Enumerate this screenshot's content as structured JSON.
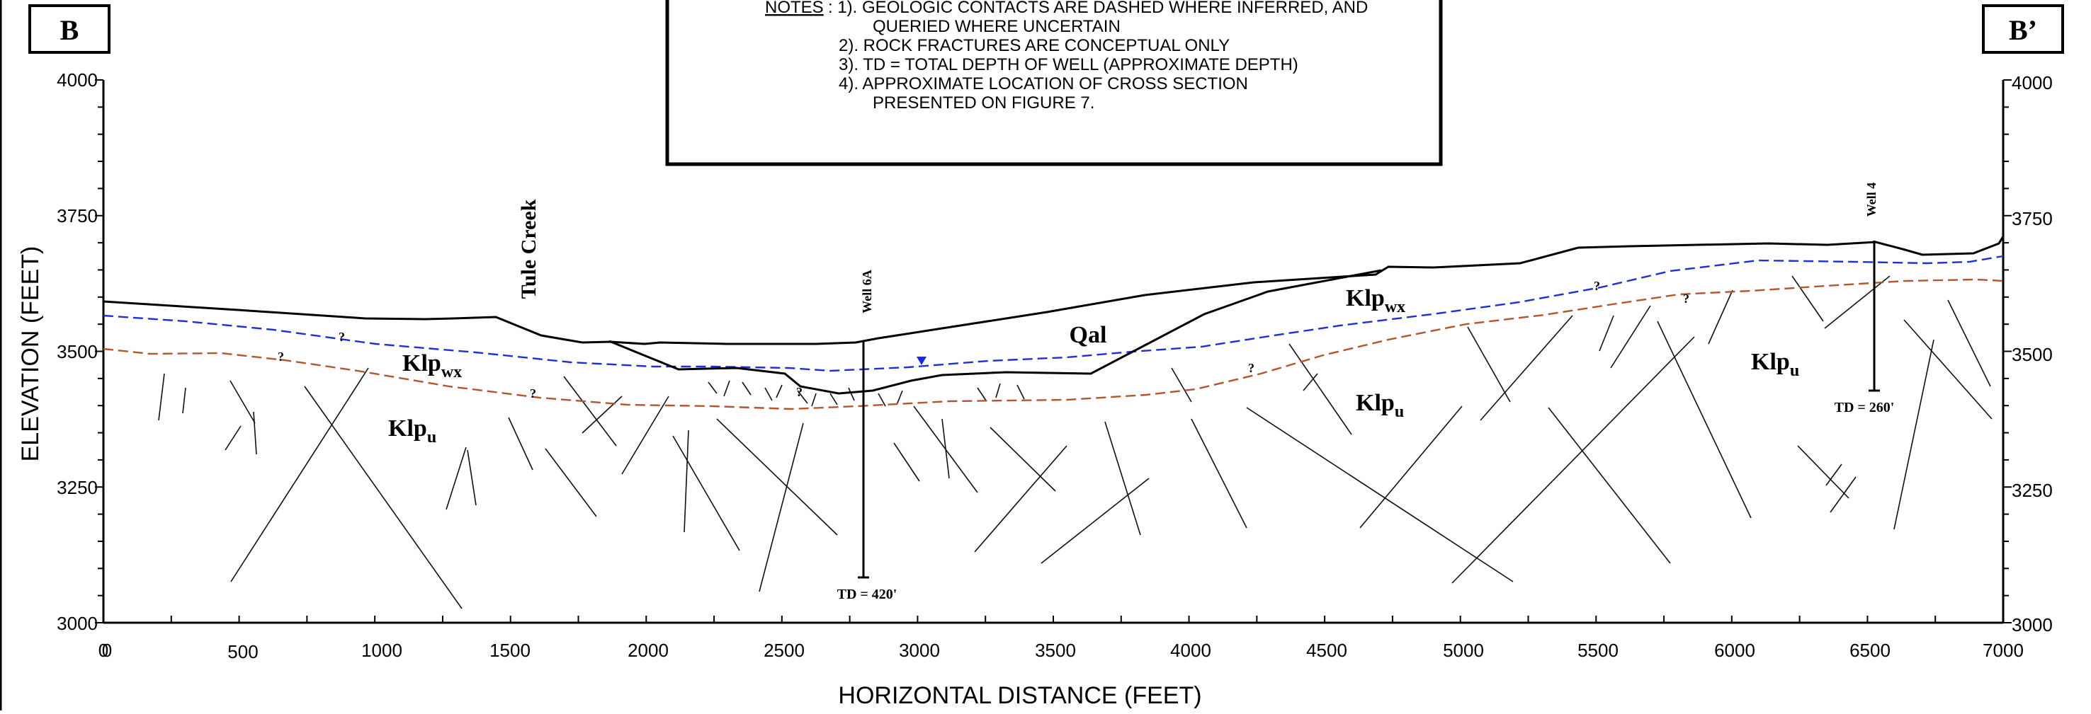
{
  "section_labels": {
    "left": "B",
    "right": "B’"
  },
  "notes": {
    "heading": "NOTES",
    "lines": [
      ": 1). GEOLOGIC CONTACTS ARE DASHED WHERE INFERRED, AND",
      "QUERIED WHERE UNCERTAIN",
      "2). ROCK FRACTURES ARE CONCEPTUAL ONLY",
      "3). TD = TOTAL DEPTH OF WELL (APPROXIMATE DEPTH)",
      "4). APPROXIMATE LOCATION OF CROSS SECTION",
      "PRESENTED ON FIGURE 7."
    ]
  },
  "axes": {
    "y_label": "ELEVATION (FEET)",
    "x_label": "HORIZONTAL DISTANCE (FEET)",
    "x_ticks": [
      "0",
      "500",
      "1000",
      "1500",
      "2000",
      "2500",
      "3000",
      "3500",
      "4000",
      "4500",
      "5000",
      "5500",
      "6000",
      "6500",
      "7000"
    ],
    "y_ticks_left": [
      "4000",
      "3750",
      "3500",
      "3250",
      "3000"
    ],
    "y_ticks_right": [
      "4000",
      "3750",
      "3500",
      "3250",
      "3000"
    ],
    "x_origin_extra": "0"
  },
  "features": {
    "tule_creek": "Tule Creek",
    "qal": "Qal"
  },
  "units": {
    "klp_wx_left": {
      "base": "Klp",
      "sub": "wx"
    },
    "klp_u_left": {
      "base": "Klp",
      "sub": "u"
    },
    "klp_u_mid": {
      "base": "Klp",
      "sub": "u"
    },
    "klp_wx_right": {
      "base": "Klp",
      "sub": "wx"
    },
    "klp_u_right": {
      "base": "Klp",
      "sub": "u"
    }
  },
  "wells": [
    {
      "name": "Well 6A",
      "td_label": "TD = 420'",
      "x_ft": 2800,
      "top_ft": 3520,
      "td_ft": 3085
    },
    {
      "name": "Well 4",
      "td_label": "TD = 260'",
      "x_ft": 6510,
      "top_ft": 3705,
      "td_ft": 3430
    }
  ],
  "queries": [
    "?",
    "?",
    "?",
    "?",
    "?",
    "?",
    "?"
  ],
  "colors": {
    "water_table": "#1f2fd6",
    "weathered_contact": "#b5552e",
    "water_marker": "#1a2ad4",
    "line": "#000000"
  }
}
